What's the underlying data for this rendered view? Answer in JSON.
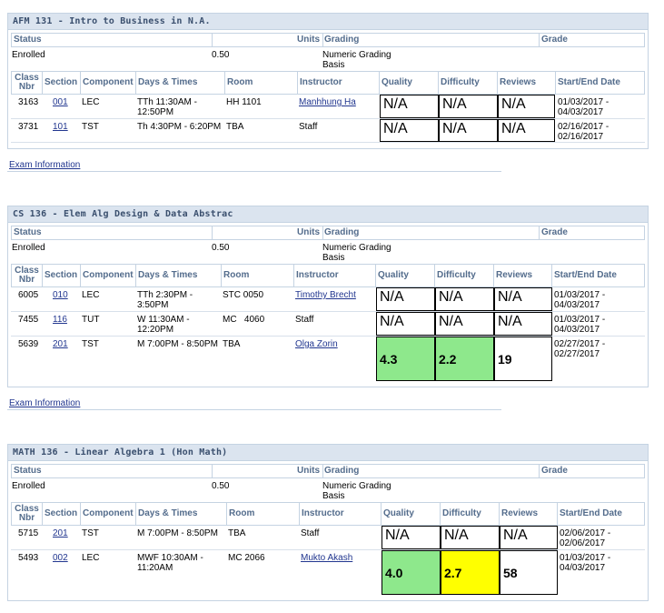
{
  "status_header": {
    "status": "Status",
    "units": "Units",
    "grading": "Grading",
    "grade": "Grade"
  },
  "class_header": {
    "class_nbr": "Class Nbr",
    "section": "Section",
    "component": "Component",
    "days_times": "Days & Times",
    "room": "Room",
    "instructor": "Instructor",
    "quality": "Quality",
    "difficulty": "Difficulty",
    "reviews": "Reviews",
    "start_end": "Start/End Date"
  },
  "exam_link": "Exam Information",
  "courses": [
    {
      "title": "AFM 131 - Intro to Business in N.A.",
      "status": "Enrolled",
      "units": "0.50",
      "grading": "Numeric Grading Basis",
      "rows": [
        {
          "nbr": "3163",
          "section": "001",
          "component": "LEC",
          "days": "TTh 11:30AM - 12:50PM",
          "room": "HH 1101",
          "instructor": "Manhhung Ha",
          "quality": "N/A",
          "difficulty": "N/A",
          "reviews": "N/A",
          "dates": "01/03/2017 - 04/03/2017"
        },
        {
          "nbr": "3731",
          "section": "101",
          "component": "TST",
          "days": "Th 4:30PM - 6:20PM",
          "room": "TBA",
          "instructor": "Staff",
          "quality": "N/A",
          "difficulty": "N/A",
          "reviews": "N/A",
          "dates": "02/16/2017 - 02/16/2017"
        }
      ]
    },
    {
      "title": "CS 136 - Elem Alg Design & Data Abstrac",
      "status": "Enrolled",
      "units": "0.50",
      "grading": "Numeric Grading Basis",
      "rows": [
        {
          "nbr": "6005",
          "section": "010",
          "component": "LEC",
          "days": "TTh 2:30PM - 3:50PM",
          "room": "STC 0050",
          "instructor": "Timothy Brecht",
          "quality": "N/A",
          "difficulty": "N/A",
          "reviews": "N/A",
          "dates": "01/03/2017 - 04/03/2017"
        },
        {
          "nbr": "7455",
          "section": "116",
          "component": "TUT",
          "days": "W 11:30AM - 12:20PM",
          "room": "MC   4060",
          "instructor": "Staff",
          "quality": "N/A",
          "difficulty": "N/A",
          "reviews": "N/A",
          "dates": "01/03/2017 - 04/03/2017"
        },
        {
          "nbr": "5639",
          "section": "201",
          "component": "TST",
          "days": "M 7:00PM - 8:50PM",
          "room": "TBA",
          "instructor": "Olga Zorin",
          "quality": "4.3",
          "difficulty": "2.2",
          "reviews": "19",
          "dates": "02/27/2017 - 02/27/2017"
        }
      ]
    },
    {
      "title": "MATH 136 - Linear Algebra 1 (Hon Math)",
      "status": "Enrolled",
      "units": "0.50",
      "grading": "Numeric Grading Basis",
      "rows": [
        {
          "nbr": "5715",
          "section": "201",
          "component": "TST",
          "days": "M 7:00PM - 8:50PM",
          "room": "TBA",
          "instructor": "Staff",
          "quality": "N/A",
          "difficulty": "N/A",
          "reviews": "N/A",
          "dates": "02/06/2017 - 02/06/2017"
        },
        {
          "nbr": "5493",
          "section": "002",
          "component": "LEC",
          "days": "MWF 10:30AM - 11:20AM",
          "room": "MC 2066",
          "instructor": "Mukto Akash",
          "quality": "4.0",
          "difficulty": "2.7",
          "reviews": "58",
          "dates": "01/03/2017 - 04/03/2017"
        }
      ]
    }
  ],
  "colors": {
    "good": "#8ee88c",
    "medium": "#ffff00",
    "header_bg": "#dbe4ef",
    "link": "#21368f"
  }
}
